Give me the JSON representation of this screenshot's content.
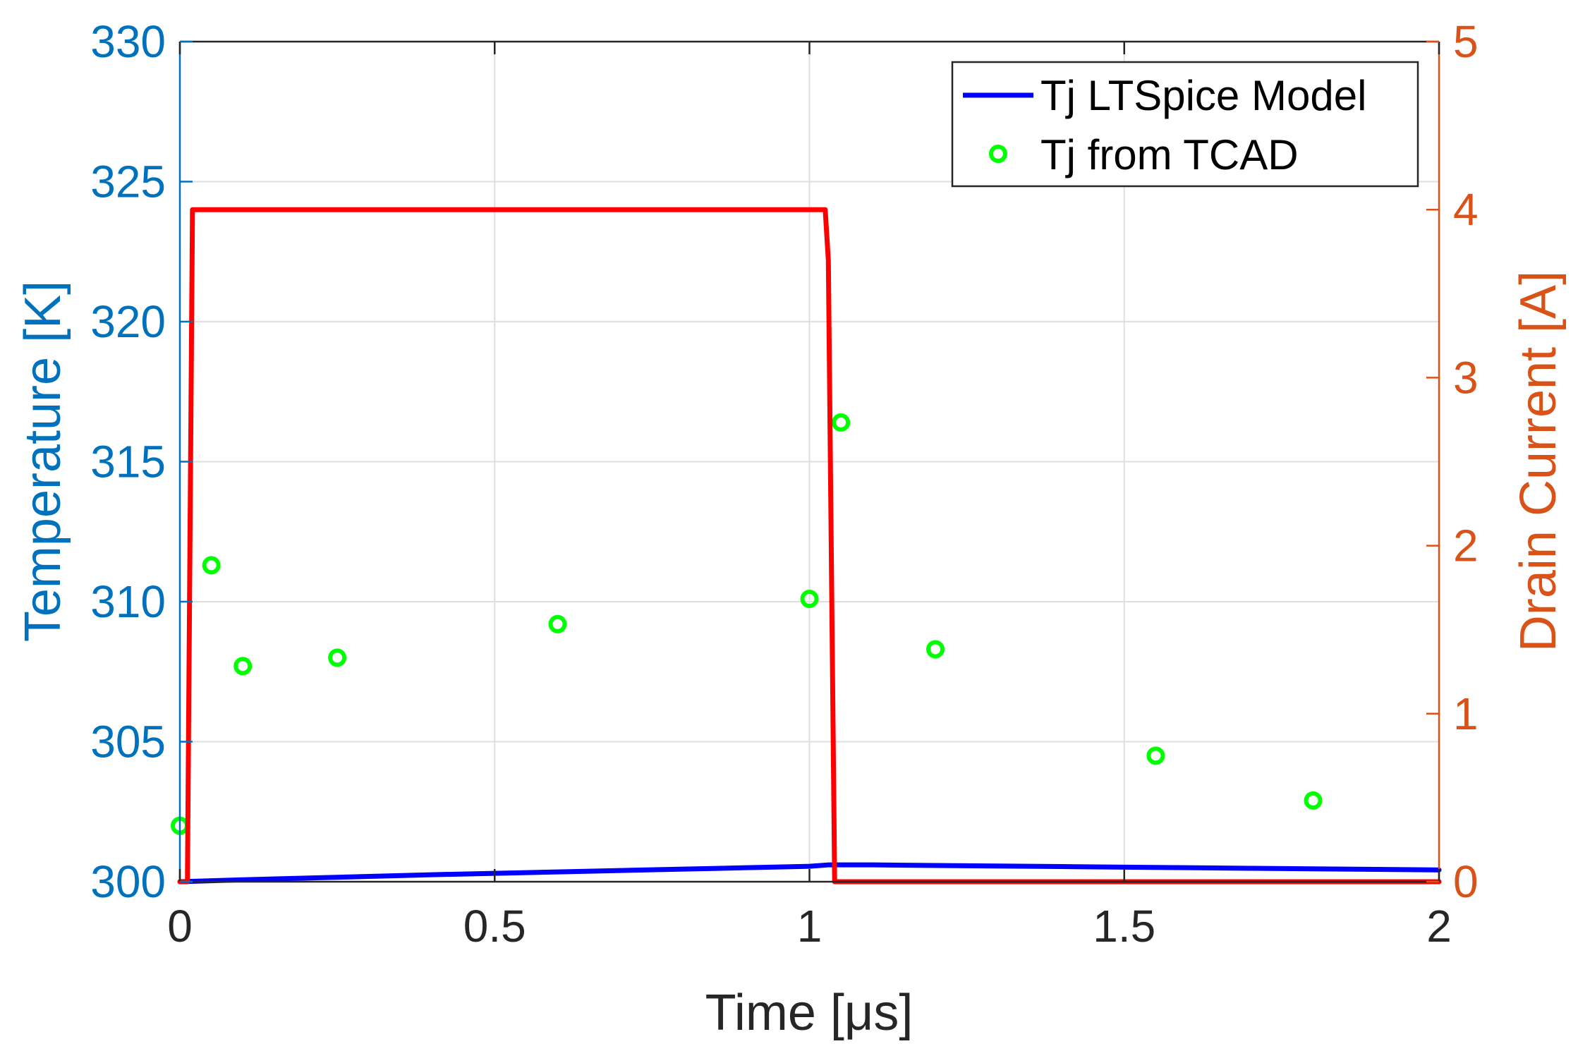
{
  "chart_data": {
    "type": "line",
    "xlabel": "Time [μs]",
    "ylabel_left": "Temperature [K]",
    "ylabel_right": "Drain Current [A]",
    "xlim": [
      0,
      2
    ],
    "ylim_left": [
      300,
      330
    ],
    "ylim_right": [
      0,
      5
    ],
    "x_ticks": [
      "0",
      "0.5",
      "1",
      "1.5",
      "2"
    ],
    "y_ticks_left": [
      "300",
      "305",
      "310",
      "315",
      "320",
      "325",
      "330"
    ],
    "y_ticks_right": [
      "0",
      "1",
      "2",
      "3",
      "4",
      "5"
    ],
    "grid": true,
    "legend_position": "top-right",
    "colors": {
      "left_axis": "#0072bd",
      "right_axis": "#d95319",
      "tj_model": "#0000ff",
      "tj_tcad": "#00ff00",
      "drain_current": "#ff0000",
      "grid": "#dfdfdf"
    },
    "series": [
      {
        "name": "Tj LTSpice Model",
        "axis": "left",
        "style": "line",
        "x": [
          0,
          0.1,
          0.2,
          0.3,
          0.4,
          0.5,
          0.6,
          0.7,
          0.8,
          0.9,
          1.0,
          1.03,
          1.1,
          1.2,
          1.3,
          1.4,
          1.5,
          1.6,
          1.7,
          1.8,
          1.9,
          2.0
        ],
        "y": [
          300.0,
          300.07,
          300.13,
          300.19,
          300.25,
          300.3,
          300.35,
          300.4,
          300.45,
          300.5,
          300.55,
          300.6,
          300.6,
          300.58,
          300.56,
          300.54,
          300.52,
          300.5,
          300.48,
          300.46,
          300.44,
          300.42
        ]
      },
      {
        "name": "Tj from TCAD",
        "axis": "left",
        "style": "markers",
        "x": [
          0,
          0.05,
          0.1,
          0.25,
          0.6,
          1.0,
          1.05,
          1.2,
          1.55,
          1.8
        ],
        "y": [
          302.0,
          311.3,
          307.7,
          308.0,
          309.2,
          310.1,
          316.4,
          308.3,
          304.5,
          302.9
        ]
      },
      {
        "axis": "right",
        "style": "line",
        "x": [
          0,
          0.012,
          0.02,
          1.025,
          1.03,
          1.04,
          2.0
        ],
        "y": [
          0,
          0,
          4,
          4,
          3.7,
          0,
          0
        ]
      }
    ]
  }
}
